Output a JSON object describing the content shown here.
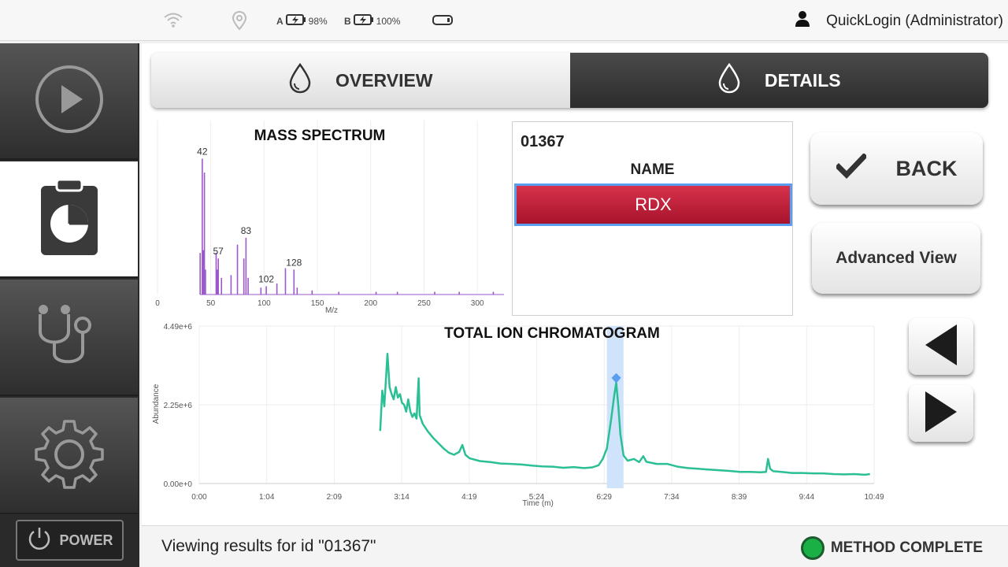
{
  "status_bar": {
    "wifi_icon": "wifi-icon",
    "location_icon": "location-pin-icon",
    "battery_a": {
      "letter": "A",
      "level": "98%"
    },
    "battery_b": {
      "letter": "B",
      "level": "100%"
    },
    "storage_icon": "storage-icon",
    "user_icon": "user-icon",
    "user_label": "QuickLogin (Administrator)"
  },
  "sidebar": {
    "items": [
      {
        "icon": "play-icon",
        "active": false
      },
      {
        "icon": "clipboard-chart-icon",
        "active": true
      },
      {
        "icon": "stethoscope-icon",
        "active": false
      },
      {
        "icon": "gear-icon",
        "active": false
      }
    ],
    "power_label": "POWER"
  },
  "tabs": [
    {
      "label": "OVERVIEW",
      "icon": "droplet-icon",
      "active": false
    },
    {
      "label": "DETAILS",
      "icon": "droplet-icon",
      "active": true
    }
  ],
  "result": {
    "id": "01367",
    "name_header": "NAME",
    "name_value": "RDX"
  },
  "buttons": {
    "back_label": "BACK",
    "advanced_label": "Advanced View"
  },
  "footer": {
    "message": "Viewing results for id \"01367\"",
    "status": "METHOD COMPLETE"
  },
  "colors": {
    "spectrum": "#9b59c9",
    "chromatogram": "#2bbf96",
    "selection": "#cfe3fb",
    "marker": "#5b9ef0",
    "name_bar": "#c01f38",
    "status_green": "#1bb045"
  },
  "chart_data": [
    {
      "type": "bar",
      "title": "MASS SPECTRUM",
      "xlabel": "M/z",
      "ylabel": "",
      "xlim": [
        0,
        325
      ],
      "xticks": [
        0,
        50,
        100,
        150,
        200,
        250,
        300
      ],
      "grid": true,
      "peaks": [
        {
          "mz": 42,
          "rel": 0.98,
          "label": "42"
        },
        {
          "mz": 44,
          "rel": 0.88
        },
        {
          "mz": 40,
          "rel": 0.3
        },
        {
          "mz": 43,
          "rel": 0.32
        },
        {
          "mz": 45,
          "rel": 0.18
        },
        {
          "mz": 55,
          "rel": 0.3
        },
        {
          "mz": 57,
          "rel": 0.26,
          "label": "57"
        },
        {
          "mz": 56,
          "rel": 0.18
        },
        {
          "mz": 60,
          "rel": 0.12
        },
        {
          "mz": 69,
          "rel": 0.14
        },
        {
          "mz": 75,
          "rel": 0.36
        },
        {
          "mz": 81,
          "rel": 0.26
        },
        {
          "mz": 83,
          "rel": 0.41,
          "label": "83"
        },
        {
          "mz": 85,
          "rel": 0.12
        },
        {
          "mz": 97,
          "rel": 0.05
        },
        {
          "mz": 102,
          "rel": 0.06,
          "label": "102"
        },
        {
          "mz": 112,
          "rel": 0.08
        },
        {
          "mz": 120,
          "rel": 0.19
        },
        {
          "mz": 128,
          "rel": 0.18,
          "label": "128"
        },
        {
          "mz": 131,
          "rel": 0.05
        },
        {
          "mz": 145,
          "rel": 0.03
        },
        {
          "mz": 170,
          "rel": 0.02
        },
        {
          "mz": 205,
          "rel": 0.02
        },
        {
          "mz": 225,
          "rel": 0.02
        },
        {
          "mz": 260,
          "rel": 0.02
        },
        {
          "mz": 283,
          "rel": 0.02
        },
        {
          "mz": 315,
          "rel": 0.02
        }
      ]
    },
    {
      "type": "line",
      "title": "TOTAL ION CHROMATOGRAM",
      "xlabel": "Time (m)",
      "ylabel": "Abundance",
      "xticks": [
        "0:00",
        "1:04",
        "2:09",
        "3:14",
        "4:19",
        "5:24",
        "6:29",
        "7:34",
        "8:39",
        "9:44",
        "10:49"
      ],
      "yticks": [
        "0.00e+0",
        "2.25e+6",
        "4.49e+6"
      ],
      "xlim_s": [
        0,
        649
      ],
      "ylim": [
        0,
        4490000
      ],
      "grid": true,
      "selected_range_s": [
        392,
        408
      ],
      "marker_point": {
        "t": 401,
        "y": 2880000
      },
      "points": [
        [
          174,
          1500000
        ],
        [
          176,
          2650000
        ],
        [
          178,
          2200000
        ],
        [
          180,
          3200000
        ],
        [
          181,
          3700000
        ],
        [
          183,
          2750000
        ],
        [
          185,
          2550000
        ],
        [
          187,
          2400000
        ],
        [
          189,
          2750000
        ],
        [
          191,
          2450000
        ],
        [
          193,
          2550000
        ],
        [
          195,
          2300000
        ],
        [
          197,
          2250000
        ],
        [
          199,
          2050000
        ],
        [
          201,
          2400000
        ],
        [
          203,
          2050000
        ],
        [
          205,
          1900000
        ],
        [
          207,
          2000000
        ],
        [
          209,
          1850000
        ],
        [
          211,
          3000000
        ],
        [
          212,
          1950000
        ],
        [
          215,
          1700000
        ],
        [
          220,
          1480000
        ],
        [
          225,
          1300000
        ],
        [
          230,
          1150000
        ],
        [
          235,
          1000000
        ],
        [
          240,
          880000
        ],
        [
          245,
          820000
        ],
        [
          250,
          900000
        ],
        [
          253,
          1100000
        ],
        [
          256,
          820000
        ],
        [
          260,
          720000
        ],
        [
          270,
          640000
        ],
        [
          280,
          610000
        ],
        [
          290,
          570000
        ],
        [
          300,
          560000
        ],
        [
          310,
          540000
        ],
        [
          320,
          510000
        ],
        [
          330,
          490000
        ],
        [
          340,
          480000
        ],
        [
          350,
          450000
        ],
        [
          360,
          470000
        ],
        [
          370,
          440000
        ],
        [
          378,
          460000
        ],
        [
          384,
          520000
        ],
        [
          388,
          700000
        ],
        [
          392,
          1000000
        ],
        [
          396,
          1800000
        ],
        [
          399,
          2500000
        ],
        [
          401,
          2880000
        ],
        [
          403,
          2200000
        ],
        [
          405,
          1400000
        ],
        [
          408,
          800000
        ],
        [
          412,
          650000
        ],
        [
          418,
          700000
        ],
        [
          423,
          610000
        ],
        [
          427,
          780000
        ],
        [
          430,
          620000
        ],
        [
          440,
          560000
        ],
        [
          450,
          560000
        ],
        [
          460,
          480000
        ],
        [
          470,
          440000
        ],
        [
          480,
          420000
        ],
        [
          490,
          400000
        ],
        [
          500,
          380000
        ],
        [
          510,
          360000
        ],
        [
          520,
          330000
        ],
        [
          530,
          330000
        ],
        [
          540,
          320000
        ],
        [
          545,
          330000
        ],
        [
          547,
          700000
        ],
        [
          549,
          420000
        ],
        [
          552,
          350000
        ],
        [
          560,
          330000
        ],
        [
          570,
          300000
        ],
        [
          580,
          300000
        ],
        [
          590,
          290000
        ],
        [
          600,
          290000
        ],
        [
          610,
          270000
        ],
        [
          620,
          260000
        ],
        [
          630,
          270000
        ],
        [
          640,
          250000
        ],
        [
          645,
          270000
        ]
      ]
    }
  ]
}
